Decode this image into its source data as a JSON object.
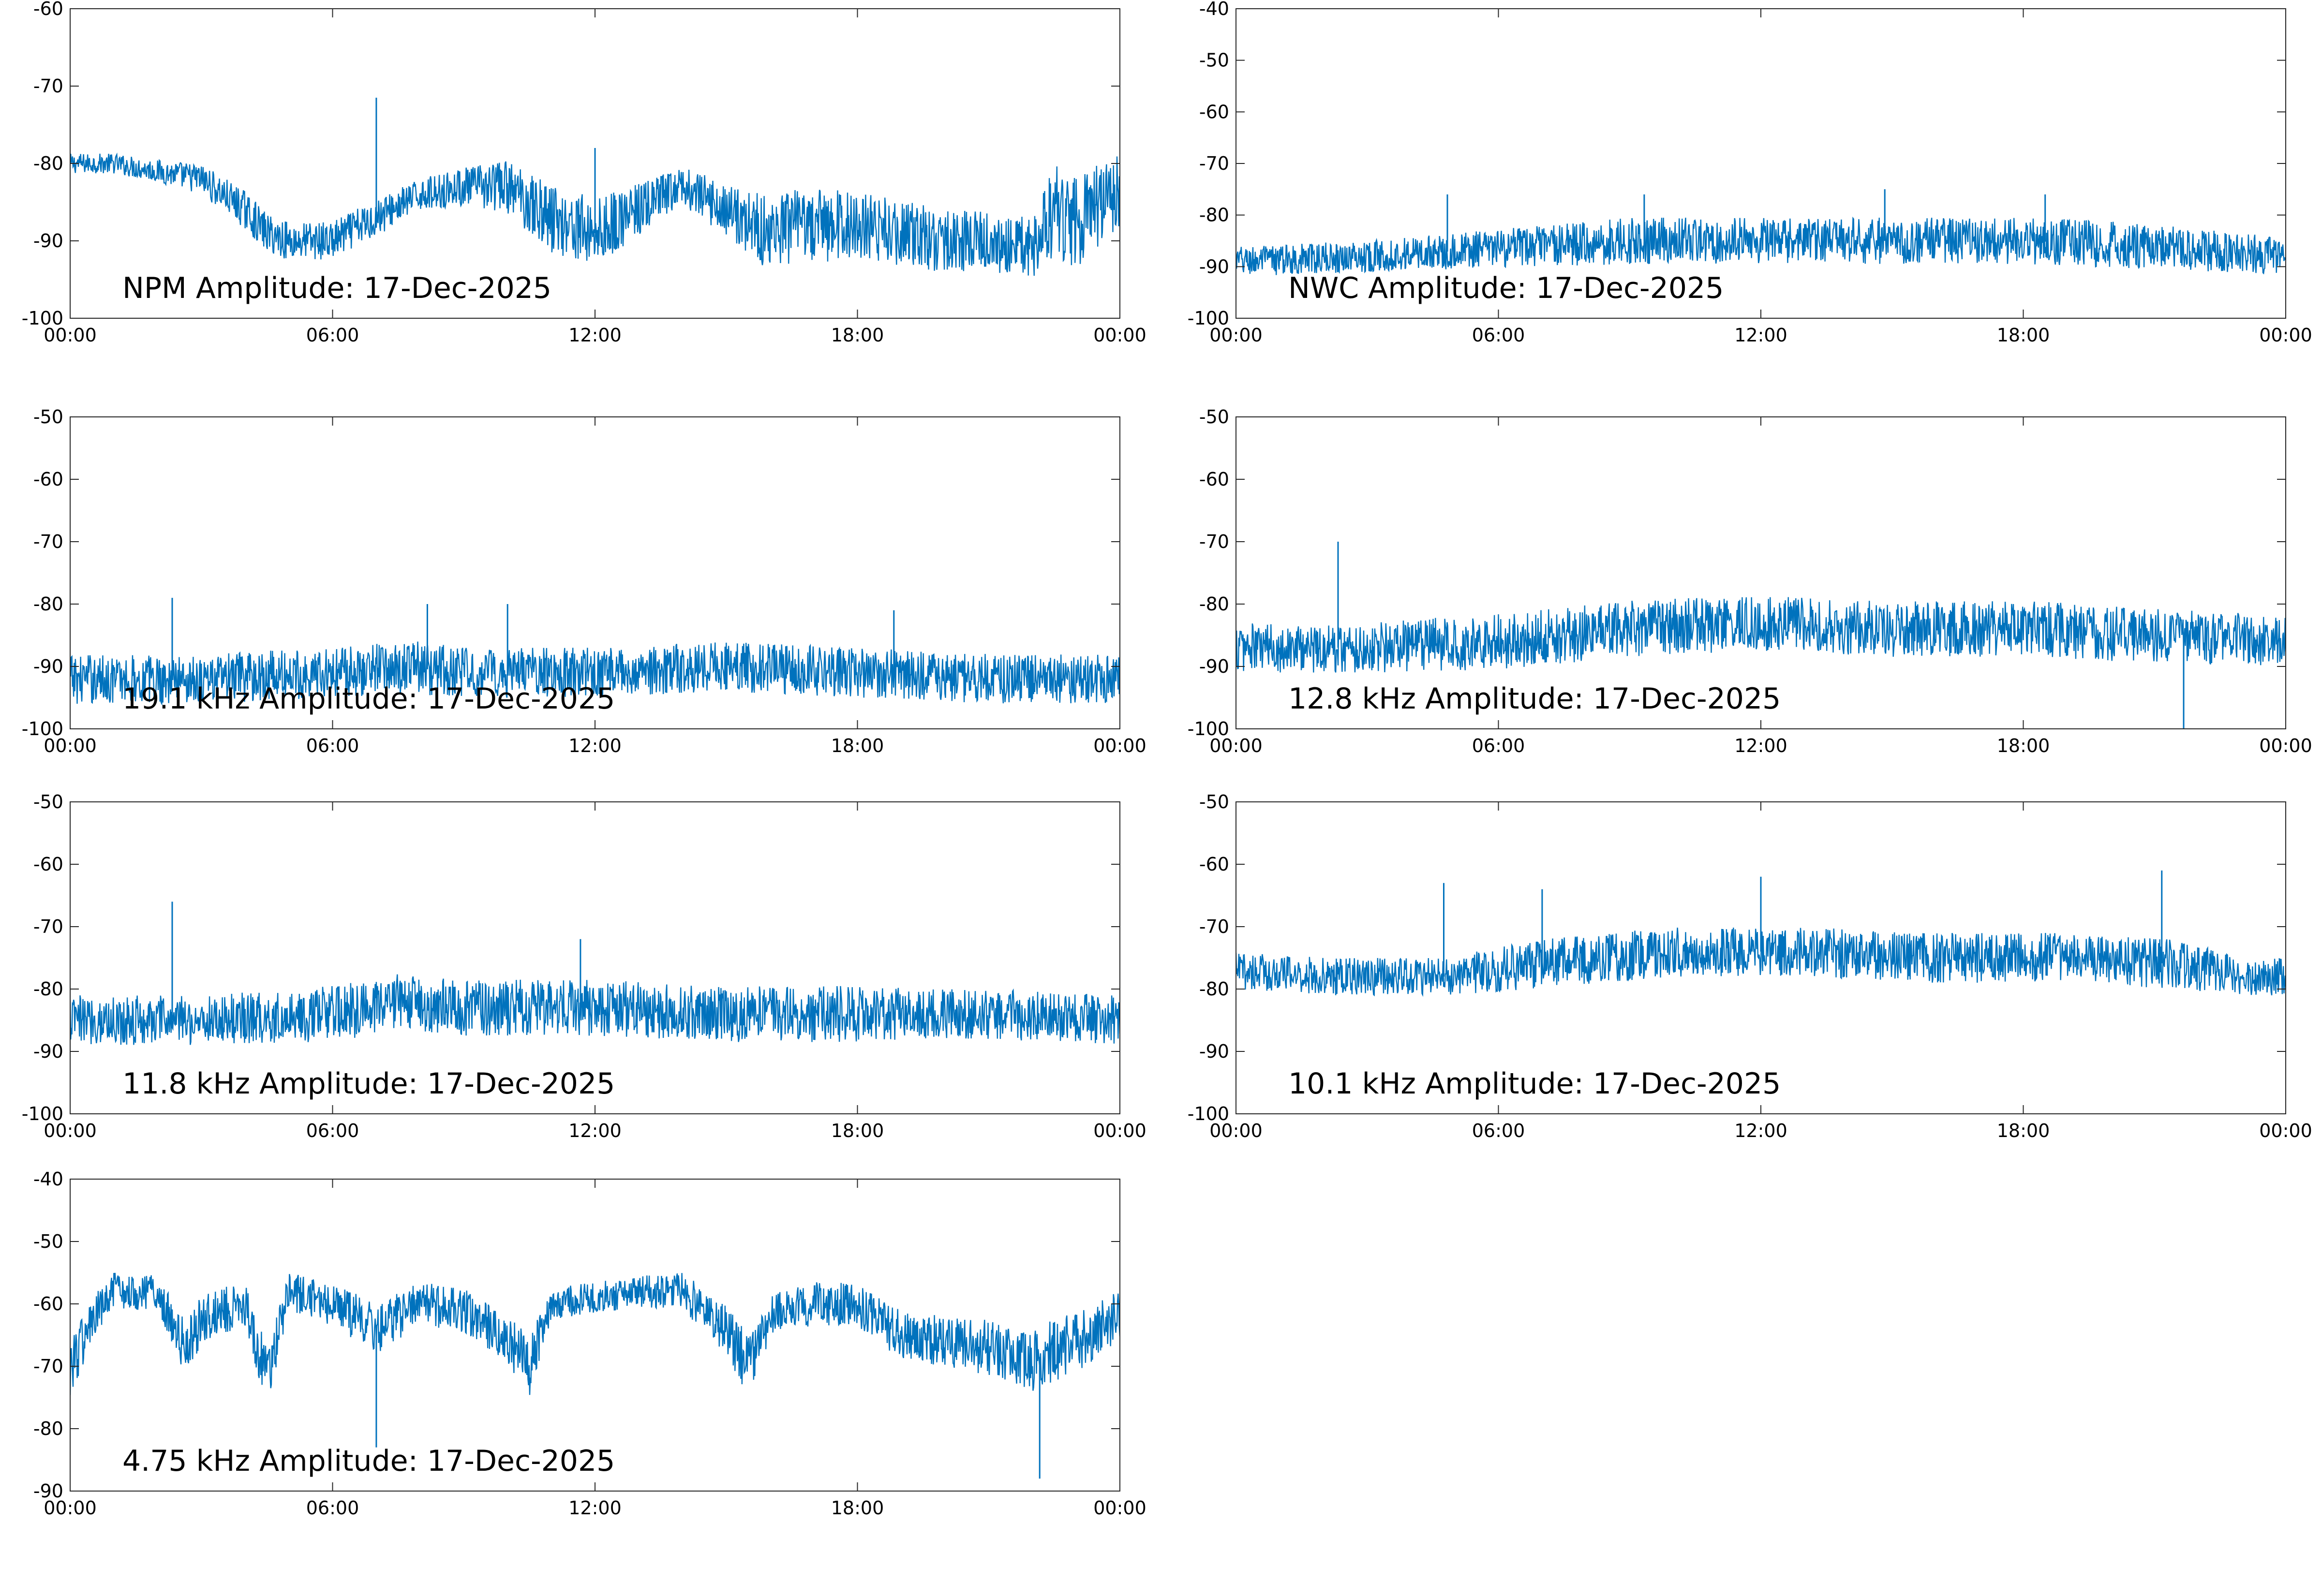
{
  "colors": {
    "line": "#0072bd",
    "axis": "#262626",
    "background": "#ffffff"
  },
  "chart_data": [
    {
      "type": "line",
      "title": "NPM Amplitude: 17-Dec-2025",
      "xlabel": "",
      "ylabel": "",
      "xlim": [
        "00:00",
        "24:00"
      ],
      "ylim": [
        -100,
        -60
      ],
      "yticks": [
        "-60",
        "-70",
        "-80",
        "-90",
        "-100"
      ],
      "xticks": [
        "00:00",
        "06:00",
        "12:00",
        "18:00",
        "00:00"
      ],
      "grid": false,
      "series": [
        {
          "x": [
            "00:00",
            "01:00",
            "02:00",
            "03:00",
            "04:00",
            "04:30",
            "05:00",
            "06:00",
            "07:00",
            "08:00",
            "09:00",
            "10:00",
            "11:00",
            "12:00",
            "13:00",
            "14:00",
            "15:00",
            "16:00",
            "17:00",
            "18:00",
            "19:00",
            "20:00",
            "21:00",
            "22:00",
            "22:30",
            "23:00",
            "24:00"
          ],
          "center": [
            -80,
            -80,
            -81,
            -82,
            -86,
            -89,
            -90,
            -90,
            -87,
            -84,
            -83,
            -83,
            -87,
            -89,
            -86,
            -83,
            -86,
            -89,
            -88,
            -88,
            -89,
            -90,
            -90,
            -91,
            -86,
            -88,
            -83
          ],
          "spread": [
            1.3,
            1.3,
            1.5,
            2.0,
            2.5,
            2.5,
            2.5,
            2.5,
            2.5,
            2.0,
            2.5,
            3.5,
            4.5,
            4.5,
            3.5,
            2.5,
            3.5,
            5.0,
            5.0,
            4.5,
            4.5,
            4.0,
            4.0,
            4.0,
            6.0,
            6.0,
            5.0
          ]
        }
      ],
      "spikes": [
        {
          "x": "07:00",
          "y": -71.5
        },
        {
          "x": "12:00",
          "y": -78
        }
      ]
    },
    {
      "type": "line",
      "title": "NWC Amplitude: 17-Dec-2025",
      "xlabel": "",
      "ylabel": "",
      "xlim": [
        "00:00",
        "24:00"
      ],
      "ylim": [
        -100,
        -40
      ],
      "yticks": [
        "-40",
        "-50",
        "-60",
        "-70",
        "-80",
        "-90",
        "-100"
      ],
      "xticks": [
        "00:00",
        "06:00",
        "12:00",
        "18:00",
        "00:00"
      ],
      "grid": false,
      "series": [
        {
          "x": [
            "00:00",
            "03:00",
            "05:00",
            "07:00",
            "09:00",
            "12:00",
            "15:00",
            "18:00",
            "21:00",
            "24:00"
          ],
          "center": [
            -89,
            -88,
            -87,
            -86,
            -85,
            -85,
            -85,
            -85,
            -86,
            -88
          ],
          "spread": [
            3.0,
            3.0,
            3.5,
            4.0,
            4.5,
            4.5,
            4.5,
            4.5,
            4.5,
            3.5
          ]
        }
      ],
      "spikes": [
        {
          "x": "04:50",
          "y": -76
        },
        {
          "x": "09:20",
          "y": -76
        },
        {
          "x": "14:50",
          "y": -75
        },
        {
          "x": "18:30",
          "y": -76
        }
      ]
    },
    {
      "type": "line",
      "title": "19.1 kHz Amplitude: 17-Dec-2025",
      "xlabel": "",
      "ylabel": "",
      "xlim": [
        "00:00",
        "24:00"
      ],
      "ylim": [
        -100,
        -50
      ],
      "yticks": [
        "-50",
        "-60",
        "-70",
        "-80",
        "-90",
        "-100"
      ],
      "xticks": [
        "00:00",
        "06:00",
        "12:00",
        "18:00",
        "00:00"
      ],
      "grid": false,
      "series": [
        {
          "x": [
            "00:00",
            "03:00",
            "06:00",
            "07:30",
            "09:00",
            "12:00",
            "15:00",
            "18:00",
            "21:00",
            "24:00"
          ],
          "center": [
            -92,
            -92,
            -91,
            -90,
            -91,
            -91,
            -90,
            -91,
            -92,
            -92
          ],
          "spread": [
            4.0,
            4.0,
            4.0,
            4.5,
            4.0,
            4.0,
            4.0,
            4.0,
            4.0,
            4.0
          ]
        }
      ],
      "spikes": [
        {
          "x": "02:20",
          "y": -79
        },
        {
          "x": "08:10",
          "y": -80
        },
        {
          "x": "10:00",
          "y": -80
        },
        {
          "x": "18:50",
          "y": -81
        }
      ]
    },
    {
      "type": "line",
      "title": "12.8 kHz Amplitude: 17-Dec-2025",
      "xlabel": "",
      "ylabel": "",
      "xlim": [
        "00:00",
        "24:00"
      ],
      "ylim": [
        -100,
        -50
      ],
      "yticks": [
        "-50",
        "-60",
        "-70",
        "-80",
        "-90",
        "-100"
      ],
      "xticks": [
        "00:00",
        "06:00",
        "12:00",
        "18:00",
        "00:00"
      ],
      "grid": false,
      "series": [
        {
          "x": [
            "00:00",
            "03:00",
            "06:00",
            "09:00",
            "12:00",
            "15:00",
            "18:00",
            "21:00",
            "24:00"
          ],
          "center": [
            -87,
            -87,
            -86,
            -84,
            -83,
            -84,
            -84,
            -85,
            -86
          ],
          "spread": [
            4.0,
            4.0,
            4.5,
            4.5,
            4.5,
            4.5,
            4.5,
            4.5,
            4.0
          ]
        }
      ],
      "spikes": [
        {
          "x": "02:20",
          "y": -70
        },
        {
          "x": "21:40",
          "y": -100
        }
      ]
    },
    {
      "type": "line",
      "title": "11.8 kHz Amplitude: 17-Dec-2025",
      "xlabel": "",
      "ylabel": "",
      "xlim": [
        "00:00",
        "24:00"
      ],
      "ylim": [
        -100,
        -50
      ],
      "yticks": [
        "-50",
        "-60",
        "-70",
        "-80",
        "-90",
        "-100"
      ],
      "xticks": [
        "00:00",
        "06:00",
        "12:00",
        "18:00",
        "00:00"
      ],
      "grid": false,
      "series": [
        {
          "x": [
            "00:00",
            "03:00",
            "06:00",
            "07:30",
            "09:00",
            "12:00",
            "15:00",
            "18:00",
            "21:00",
            "24:00"
          ],
          "center": [
            -85,
            -85,
            -84,
            -82,
            -83,
            -83,
            -84,
            -84,
            -84,
            -85
          ],
          "spread": [
            4.0,
            4.0,
            4.5,
            4.5,
            4.5,
            4.5,
            4.5,
            4.5,
            4.0,
            4.0
          ]
        }
      ],
      "spikes": [
        {
          "x": "02:20",
          "y": -66
        },
        {
          "x": "11:40",
          "y": -72
        }
      ]
    },
    {
      "type": "line",
      "title": "10.1 kHz Amplitude: 17-Dec-2025",
      "xlabel": "",
      "ylabel": "",
      "xlim": [
        "00:00",
        "24:00"
      ],
      "ylim": [
        -100,
        -50
      ],
      "yticks": [
        "-50",
        "-60",
        "-70",
        "-80",
        "-90",
        "-100"
      ],
      "xticks": [
        "00:00",
        "06:00",
        "12:00",
        "18:00",
        "00:00"
      ],
      "grid": false,
      "series": [
        {
          "x": [
            "00:00",
            "02:00",
            "04:45",
            "07:00",
            "10:00",
            "13:00",
            "16:00",
            "19:00",
            "21:30",
            "23:00",
            "24:00"
          ],
          "center": [
            -77,
            -78,
            -78,
            -76,
            -74,
            -74,
            -75,
            -75,
            -76,
            -78,
            -78
          ],
          "spread": [
            3.0,
            3.0,
            3.0,
            4.0,
            4.0,
            4.0,
            4.0,
            4.0,
            4.0,
            3.0,
            3.0
          ]
        }
      ],
      "spikes": [
        {
          "x": "04:45",
          "y": -63
        },
        {
          "x": "07:00",
          "y": -64
        },
        {
          "x": "12:00",
          "y": -62
        },
        {
          "x": "21:10",
          "y": -61
        }
      ]
    },
    {
      "type": "line",
      "title": "4.75 kHz Amplitude: 17-Dec-2025",
      "xlabel": "",
      "ylabel": "",
      "xlim": [
        "00:00",
        "24:00"
      ],
      "ylim": [
        -90,
        -40
      ],
      "yticks": [
        "-40",
        "-50",
        "-60",
        "-70",
        "-80",
        "-90"
      ],
      "xticks": [
        "00:00",
        "06:00",
        "12:00",
        "18:00",
        "00:00"
      ],
      "grid": false,
      "series": [
        {
          "x": [
            "00:00",
            "00:30",
            "01:00",
            "02:00",
            "02:40",
            "03:00",
            "04:00",
            "04:30",
            "05:00",
            "06:00",
            "07:00",
            "08:00",
            "09:00",
            "10:00",
            "10:30",
            "11:00",
            "12:00",
            "13:00",
            "14:00",
            "15:00",
            "15:30",
            "16:00",
            "17:00",
            "18:00",
            "19:00",
            "20:00",
            "21:00",
            "22:00",
            "23:00",
            "24:00"
          ],
          "center": [
            -70,
            -63,
            -58,
            -58,
            -68,
            -62,
            -60,
            -72,
            -58,
            -60,
            -64,
            -60,
            -61,
            -66,
            -70,
            -60,
            -59,
            -58,
            -58,
            -64,
            -70,
            -62,
            -60,
            -60,
            -65,
            -66,
            -67,
            -69,
            -66,
            -62
          ],
          "spread": [
            5.0,
            4.0,
            3.0,
            3.0,
            5.0,
            4.0,
            3.5,
            5.0,
            3.0,
            3.5,
            4.0,
            3.5,
            3.5,
            4.0,
            5.0,
            2.5,
            2.5,
            2.5,
            3.0,
            4.0,
            5.0,
            3.5,
            3.5,
            3.5,
            4.0,
            4.0,
            4.5,
            5.0,
            5.0,
            4.0
          ]
        }
      ],
      "spikes": [
        {
          "x": "07:00",
          "y": -83
        },
        {
          "x": "22:10",
          "y": -88
        }
      ]
    }
  ]
}
